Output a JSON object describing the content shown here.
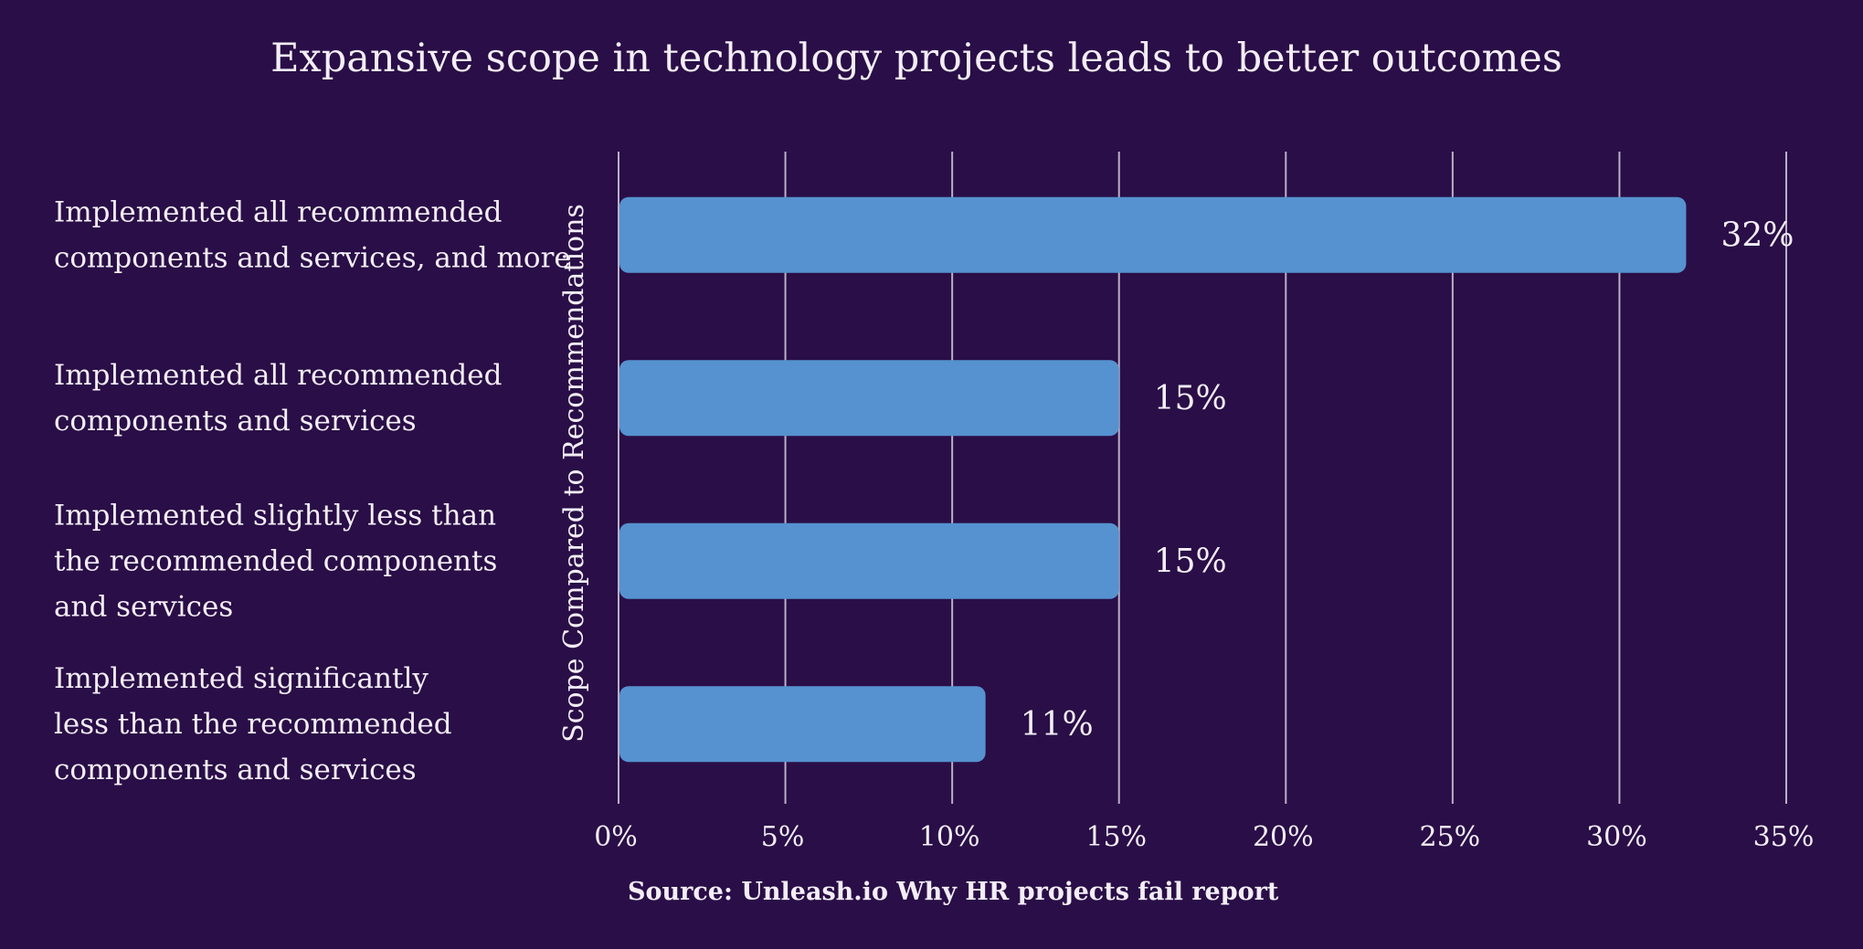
{
  "colors": {
    "background": "#2a0e47",
    "bar": "#5592cf",
    "text": "#f3eef6",
    "grid": "#b9b0c6"
  },
  "chart_data": {
    "type": "bar",
    "orientation": "horizontal",
    "title": "Expansive scope in technology projects leads to better outcomes",
    "xlabel": "",
    "ylabel": "Scope Compared to Recommendations",
    "categories": [
      [
        "Implemented all recommended",
        "components and services,  and more"
      ],
      [
        "Implemented all recommended",
        "components and services"
      ],
      [
        "Implemented slightly less than",
        "the recommended components",
        "and services"
      ],
      [
        "Implemented significantly",
        "less than the recommended",
        "components and services"
      ]
    ],
    "values": [
      32,
      15,
      15,
      11
    ],
    "data_labels": [
      "32%",
      "15%",
      "15%",
      "11%"
    ],
    "xlim": [
      0,
      35
    ],
    "x_ticks": [
      0,
      5,
      10,
      15,
      20,
      25,
      30,
      35
    ],
    "x_tick_labels": [
      "0%",
      "5%",
      "10%",
      "15%",
      "20%",
      "25%",
      "30%",
      "35%"
    ],
    "grid": true,
    "source": "Source: Unleash.io Why HR projects fail report"
  }
}
